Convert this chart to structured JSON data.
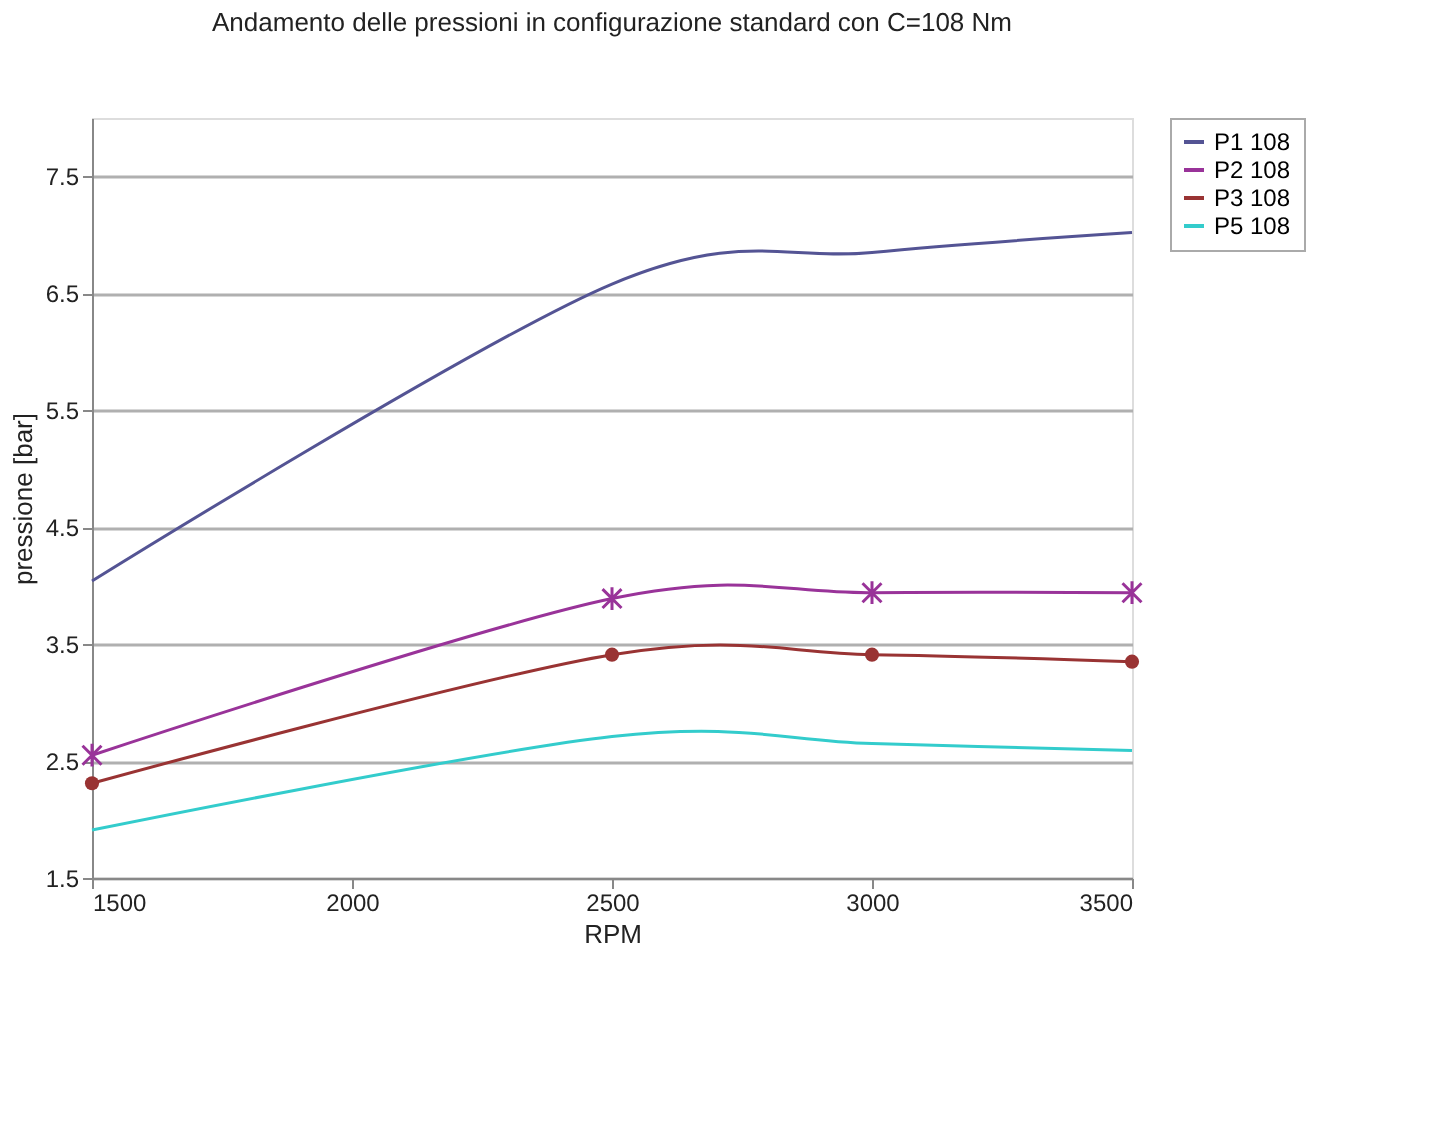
{
  "chart_data": {
    "type": "line",
    "title": "Andamento delle pressioni in configurazione standard con C=108 Nm",
    "xlabel": "RPM",
    "ylabel": "pressione [bar]",
    "x": [
      1500,
      2500,
      3000,
      3500
    ],
    "series": [
      {
        "name": "P1 108",
        "color": "#545494",
        "marker": "none",
        "values": [
          4.04,
          6.58,
          6.85,
          7.02
        ]
      },
      {
        "name": "P2 108",
        "color": "#993399",
        "marker": "cross",
        "values": [
          2.55,
          3.89,
          3.94,
          3.94
        ]
      },
      {
        "name": "P3 108",
        "color": "#993333",
        "marker": "circle",
        "values": [
          2.31,
          3.41,
          3.41,
          3.35
        ]
      },
      {
        "name": "P5 108",
        "color": "#33cccc",
        "marker": "none",
        "values": [
          1.91,
          2.71,
          2.65,
          2.59
        ]
      }
    ],
    "xlim": [
      1500,
      3500
    ],
    "xticks": [
      1500,
      2000,
      2500,
      3000,
      3500
    ],
    "ylim": [
      1.5,
      8.0
    ],
    "yticks": [
      1.5,
      2.5,
      3.5,
      4.5,
      5.5,
      6.5,
      7.5
    ],
    "grid": "y",
    "legend": "right",
    "line_style": "solid"
  }
}
